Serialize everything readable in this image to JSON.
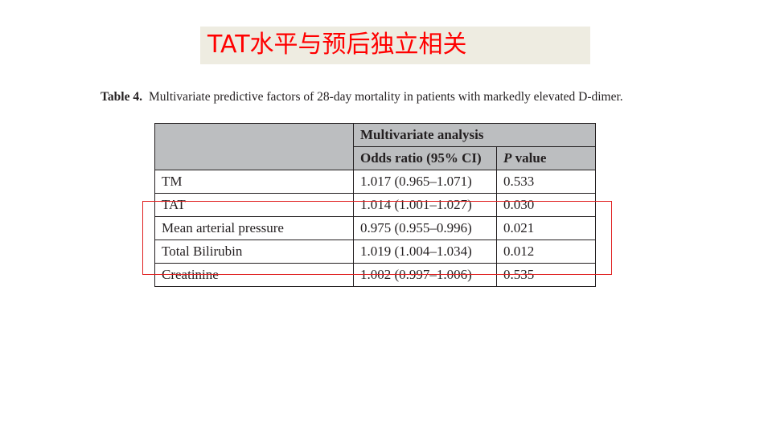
{
  "slide": {
    "title": "TAT水平与预后独立相关"
  },
  "caption": {
    "label": "Table 4.",
    "text": "Multivariate predictive factors of 28-day mortality in patients with markedly elevated D-dimer."
  },
  "table": {
    "group_header": "Multivariate analysis",
    "col_or": "Odds ratio (95% CI)",
    "col_p_italic": "P",
    "col_p_rest": " value",
    "rows": [
      {
        "factor": "TM",
        "or": "1.017 (0.965–1.071)",
        "p": "0.533"
      },
      {
        "factor": "TAT",
        "or": "1.014 (1.001–1.027)",
        "p": "0.030"
      },
      {
        "factor": "Mean arterial pressure",
        "or": "0.975 (0.955–0.996)",
        "p": "0.021"
      },
      {
        "factor": "Total Bilirubin",
        "or": "1.019 (1.004–1.034)",
        "p": "0.012"
      },
      {
        "factor": "Creatinine",
        "or": "1.002 (0.997–1.006)",
        "p": "0.535"
      }
    ]
  },
  "highlight": {
    "color": "#e02020"
  }
}
